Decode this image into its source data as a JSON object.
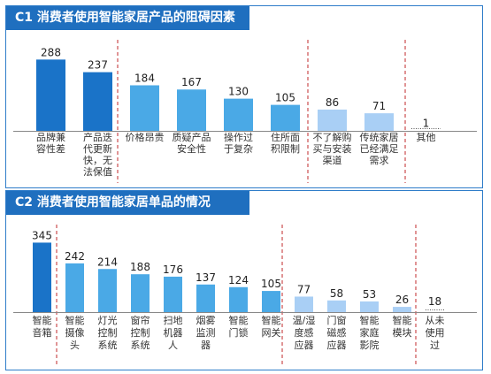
{
  "chart_data": [
    {
      "type": "bar",
      "title": "C1 消费者使用智能家居产品的阻碍因素",
      "categories": [
        "品牌兼容性差",
        "产品迭代更新快，无法保值",
        "价格昂贵",
        "质疑产品安全性",
        "操作过于复杂",
        "住所面积限制",
        "不了解购买与安装渠道",
        "传统家居已经满足需求",
        "其他"
      ],
      "label_lines": [
        [
          "品牌兼",
          "容性差"
        ],
        [
          "产品迭",
          "代更新",
          "快，无",
          "法保值"
        ],
        [
          "价格昂贵"
        ],
        [
          "质疑产品",
          "安全性"
        ],
        [
          "操作过",
          "于复杂"
        ],
        [
          "住所面",
          "积限制"
        ],
        [
          "不了解购",
          "买与安装",
          "渠道"
        ],
        [
          "传统家居",
          "已经满足",
          "需求"
        ],
        [
          "其他"
        ]
      ],
      "values": [
        288,
        237,
        184,
        167,
        130,
        105,
        86,
        71,
        1
      ],
      "group_colors": [
        "#1a73c8",
        "#1a73c8",
        "#4aa9e6",
        "#4aa9e6",
        "#4aa9e6",
        "#4aa9e6",
        "#a9cff5",
        "#a9cff5",
        "#ffffff"
      ],
      "ylim": [
        0,
        300
      ]
    },
    {
      "type": "bar",
      "title": "C2 消费者使用智能家居单品的情况",
      "categories": [
        "智能音箱",
        "智能摄像头",
        "灯光控制系统",
        "窗帘控制系统",
        "扫地机器人",
        "烟雾监测器",
        "智能门锁",
        "智能网关",
        "温/湿度感应器",
        "门窗磁感应器",
        "智能家庭影院",
        "智能模块",
        "从未使用过"
      ],
      "label_lines": [
        [
          "智能",
          "音箱"
        ],
        [
          "智能",
          "摄像",
          "头"
        ],
        [
          "灯光",
          "控制",
          "系统"
        ],
        [
          "窗帘",
          "控制",
          "系统"
        ],
        [
          "扫地",
          "机器",
          "人"
        ],
        [
          "烟雾",
          "监测",
          "器"
        ],
        [
          "智能",
          "门锁"
        ],
        [
          "智能",
          "网关"
        ],
        [
          "温/湿",
          "度感",
          "应器"
        ],
        [
          "门窗",
          "磁感",
          "应器"
        ],
        [
          "智能",
          "家庭",
          "影院"
        ],
        [
          "智能",
          "模块"
        ],
        [
          "从未",
          "使用",
          "过"
        ]
      ],
      "values": [
        345,
        242,
        214,
        188,
        176,
        137,
        124,
        105,
        77,
        58,
        53,
        26,
        18
      ],
      "group_colors": [
        "#1a73c8",
        "#4aa9e6",
        "#4aa9e6",
        "#4aa9e6",
        "#4aa9e6",
        "#4aa9e6",
        "#4aa9e6",
        "#4aa9e6",
        "#a9cff5",
        "#a9cff5",
        "#a9cff5",
        "#a9cff5",
        "#ffffff"
      ],
      "ylim": [
        0,
        360
      ]
    }
  ]
}
